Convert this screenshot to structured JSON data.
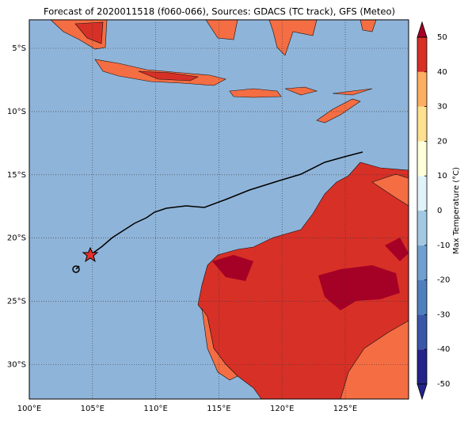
{
  "title": "Forecast of 2020011518 (f060-066), Sources: GDACS (TC track), GFS (Meteo)",
  "x_tick_labels": [
    "100°E",
    "105°E",
    "110°E",
    "115°E",
    "120°E",
    "125°E"
  ],
  "y_tick_labels": [
    "5°S",
    "10°S",
    "15°S",
    "20°S",
    "25°S",
    "30°S"
  ],
  "colorbar": {
    "label": "Max Temperature (°C)",
    "ticks": [
      -50,
      -40,
      -30,
      -20,
      -10,
      0,
      10,
      20,
      30,
      40,
      50
    ],
    "colors": [
      "#23238a",
      "#3a56a8",
      "#4f7fbd",
      "#6fa0cf",
      "#a3c8e2",
      "#e0f3f8",
      "#ffffd9",
      "#fee090",
      "#fdae61",
      "#d73027",
      "#a50026"
    ]
  }
}
